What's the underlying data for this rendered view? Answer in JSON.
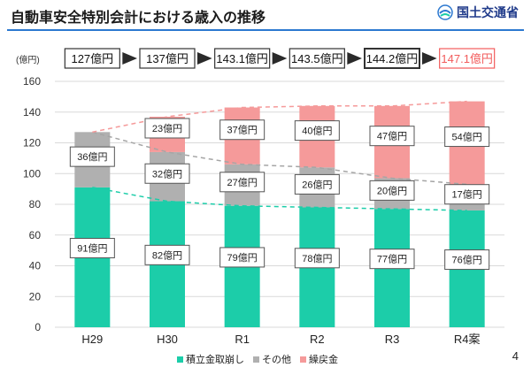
{
  "header": {
    "title": "自動車安全特別会計における歳入の推移",
    "logo_text": "国土交通省",
    "page_number": "4"
  },
  "colors": {
    "kanshi": "#1ccda9",
    "other": "#b0b0b0",
    "kurimodoshi": "#f59a9a",
    "accent_red": "#f25c5c",
    "rule_blue": "#2b78d0"
  },
  "chart_data": {
    "type": "bar",
    "stacked": true,
    "ylabel": "(億円)",
    "ylim": [
      0,
      160
    ],
    "yticks": [
      0,
      20,
      40,
      60,
      80,
      100,
      120,
      140,
      160
    ],
    "categories": [
      "H29",
      "H30",
      "R1",
      "R2",
      "R3",
      "R4案"
    ],
    "totals": [
      "127億円",
      "137億円",
      "143.1億円",
      "143.5億円",
      "144.2億円",
      "147.1億円"
    ],
    "series": [
      {
        "name": "積立金取崩し",
        "values": [
          91,
          82,
          79,
          78,
          77,
          76
        ],
        "labels": [
          "91億円",
          "82億円",
          "79億円",
          "78億円",
          "77億円",
          "76億円"
        ]
      },
      {
        "name": "その他",
        "values": [
          36,
          32,
          27,
          26,
          20,
          17
        ],
        "labels": [
          "36億円",
          "32億円",
          "27億円",
          "26億円",
          "20億円",
          "17億円"
        ]
      },
      {
        "name": "繰戻金",
        "values": [
          0,
          23,
          37,
          40,
          47,
          54
        ],
        "labels": [
          "",
          "23億円",
          "37億円",
          "40億円",
          "47億円",
          "54億円"
        ]
      }
    ],
    "legend": [
      "積立金取崩し",
      "その他",
      "繰戻金"
    ]
  }
}
